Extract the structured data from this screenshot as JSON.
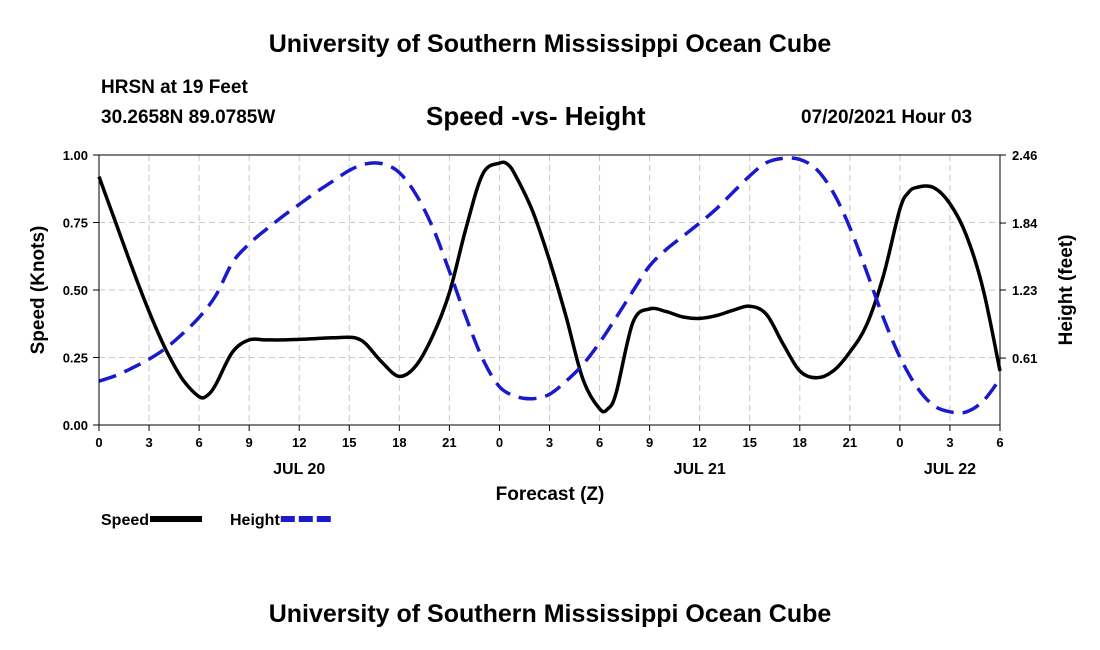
{
  "header": {
    "title_top": "University of Southern Mississippi Ocean Cube",
    "station": "HRSN at 19 Feet",
    "coords": "30.2658N  89.0785W",
    "chart_title": "Speed -vs- Height",
    "datetime": "07/20/2021 Hour 03",
    "title_bottom": "University of Southern Mississippi Ocean Cube"
  },
  "colors": {
    "speed": "#000000",
    "height": "#1a1acc",
    "grid": "#c8c8c8"
  },
  "chart_data": {
    "type": "line",
    "title": "Speed -vs- Height",
    "xlabel": "Forecast (Z)",
    "ylabel": "Speed (Knots)",
    "y2label": "Height (feet)",
    "xlim": [
      0,
      54
    ],
    "ylim": [
      0,
      1
    ],
    "y2lim": [
      0,
      2.46
    ],
    "x_ticks": [
      0,
      3,
      6,
      9,
      12,
      15,
      18,
      21,
      24,
      27,
      30,
      33,
      36,
      39,
      42,
      45,
      48,
      51,
      54
    ],
    "x_tick_labels": [
      "0",
      "3",
      "6",
      "9",
      "12",
      "15",
      "18",
      "21",
      "0",
      "3",
      "6",
      "9",
      "12",
      "15",
      "18",
      "21",
      "0",
      "3",
      "6"
    ],
    "y_ticks": [
      0,
      0.25,
      0.5,
      0.75,
      1
    ],
    "y_tick_labels": [
      "0.00",
      "0.25",
      "0.50",
      "0.75",
      "1.00"
    ],
    "y2_ticks": [
      0.61,
      1.23,
      1.84,
      2.46
    ],
    "y2_tick_labels": [
      "0.61",
      "1.23",
      "1.84",
      "2.46"
    ],
    "date_labels": [
      {
        "x": 12,
        "label": "JUL 20"
      },
      {
        "x": 36,
        "label": "JUL 21"
      },
      {
        "x": 51,
        "label": "JUL 22"
      }
    ],
    "grid": true,
    "legend": [
      {
        "name": "Speed",
        "style": "solid"
      },
      {
        "name": "Height",
        "style": "dashed"
      }
    ],
    "series": [
      {
        "name": "Speed",
        "style": "solid",
        "axis": "left",
        "x": [
          0,
          1,
          2,
          3,
          4,
          5,
          6,
          6.5,
          7,
          8,
          9,
          10,
          11,
          12,
          13,
          14,
          15,
          15.5,
          16,
          17,
          18,
          19,
          20,
          21,
          22,
          23,
          24,
          24.5,
          25,
          26,
          27,
          28,
          29,
          30,
          30.5,
          31,
          32,
          33,
          34,
          35,
          36,
          37,
          38,
          39,
          40,
          41,
          42,
          43,
          44,
          45,
          46,
          47,
          48,
          48.5,
          49,
          50,
          51,
          52,
          53,
          54
        ],
        "values": [
          0.92,
          0.75,
          0.58,
          0.42,
          0.28,
          0.17,
          0.105,
          0.11,
          0.15,
          0.27,
          0.315,
          0.315,
          0.315,
          0.317,
          0.32,
          0.323,
          0.325,
          0.32,
          0.3,
          0.23,
          0.18,
          0.22,
          0.33,
          0.49,
          0.73,
          0.93,
          0.97,
          0.965,
          0.92,
          0.79,
          0.61,
          0.4,
          0.17,
          0.06,
          0.06,
          0.12,
          0.38,
          0.43,
          0.42,
          0.4,
          0.395,
          0.405,
          0.425,
          0.44,
          0.41,
          0.3,
          0.2,
          0.175,
          0.2,
          0.27,
          0.37,
          0.55,
          0.8,
          0.86,
          0.88,
          0.88,
          0.82,
          0.7,
          0.5,
          0.2
        ]
      },
      {
        "name": "Height",
        "style": "dashed",
        "axis": "right",
        "x": [
          0,
          1,
          2,
          3,
          4,
          5,
          6,
          7,
          8,
          9,
          10,
          11,
          12,
          13,
          14,
          15,
          16,
          17,
          18,
          19,
          20,
          21,
          22,
          23,
          24,
          25,
          26,
          27,
          28,
          29,
          30,
          31,
          32,
          33,
          34,
          35,
          36,
          37,
          38,
          39,
          40,
          41,
          42,
          43,
          44,
          45,
          46,
          47,
          48,
          49,
          50,
          51,
          52,
          53,
          54
        ],
        "values": [
          0.4,
          0.45,
          0.52,
          0.6,
          0.7,
          0.83,
          0.98,
          1.18,
          1.48,
          1.65,
          1.78,
          1.9,
          2.01,
          2.12,
          2.22,
          2.32,
          2.38,
          2.38,
          2.3,
          2.1,
          1.8,
          1.4,
          0.98,
          0.6,
          0.35,
          0.26,
          0.24,
          0.28,
          0.4,
          0.55,
          0.75,
          0.98,
          1.22,
          1.45,
          1.6,
          1.72,
          1.84,
          1.97,
          2.12,
          2.27,
          2.39,
          2.43,
          2.42,
          2.33,
          2.12,
          1.8,
          1.4,
          0.98,
          0.62,
          0.35,
          0.18,
          0.12,
          0.12,
          0.22,
          0.42
        ]
      }
    ]
  }
}
